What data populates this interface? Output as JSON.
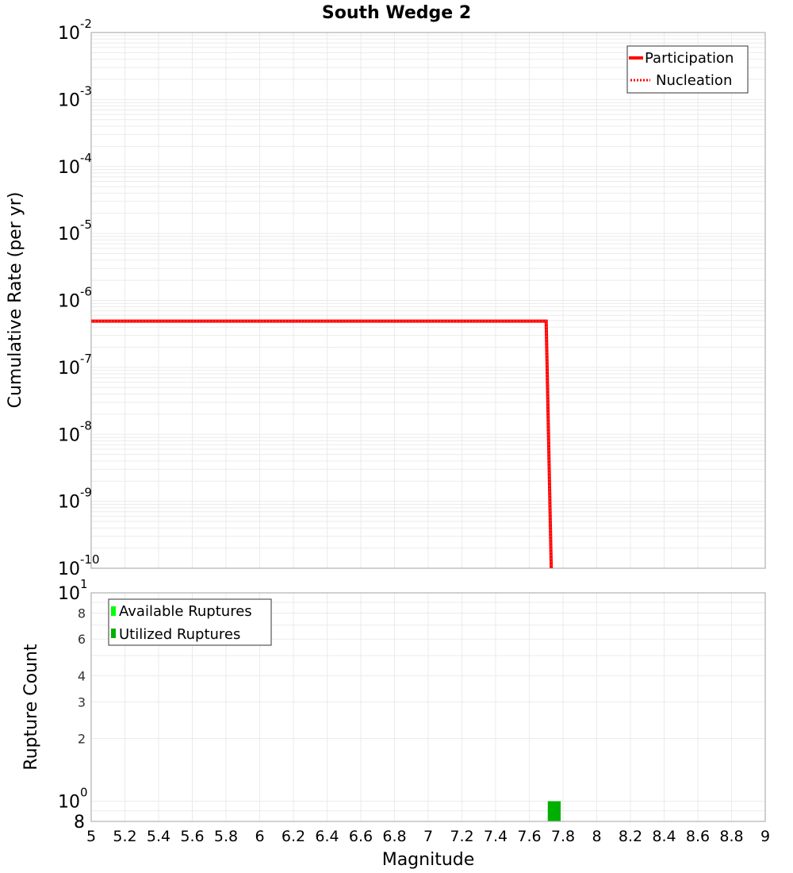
{
  "chart_data": [
    {
      "type": "line",
      "title": "South Wedge 2",
      "xlabel": "Magnitude",
      "ylabel": "Cumulative Rate (per yr)",
      "yscale": "log",
      "xlim": [
        5,
        9
      ],
      "ylim": [
        1e-10,
        0.01
      ],
      "grid": true,
      "legend_position": "top-right",
      "y_ticks": [
        "10^-2",
        "10^-3",
        "10^-4",
        "10^-5",
        "10^-6",
        "10^-7",
        "10^-8",
        "10^-9",
        "10^-10"
      ],
      "series": [
        {
          "name": "Participation",
          "style": "solid",
          "color": "#ff0000",
          "x": [
            5.0,
            7.7,
            7.73
          ],
          "y": [
            4.9e-07,
            4.9e-07,
            1e-10
          ]
        },
        {
          "name": "Nucleation",
          "style": "dotted",
          "color": "#ff0000",
          "x": [
            5.0,
            7.7,
            7.73
          ],
          "y": [
            4.9e-07,
            4.9e-07,
            1e-10
          ]
        }
      ]
    },
    {
      "type": "bar",
      "title": "",
      "xlabel": "Magnitude",
      "ylabel": "Rupture Count",
      "yscale": "log",
      "xlim": [
        5,
        9
      ],
      "ylim": [
        0.8,
        10
      ],
      "grid": true,
      "legend_position": "top-left",
      "y_ticks": [
        "10^1",
        "8",
        "6",
        "4",
        "3",
        "2",
        "10^0",
        "8"
      ],
      "x_ticks": [
        "5",
        "5.2",
        "5.4",
        "5.6",
        "5.8",
        "6",
        "6.2",
        "6.4",
        "6.6",
        "6.8",
        "7",
        "7.2",
        "7.4",
        "7.6",
        "7.8",
        "8",
        "8.2",
        "8.4",
        "8.6",
        "8.8",
        "9"
      ],
      "series": [
        {
          "name": "Available Ruptures",
          "color": "#00ff00",
          "bins": [
            [
              7.7,
              7.8
            ]
          ],
          "values": [
            1
          ]
        },
        {
          "name": "Utilized Ruptures",
          "color": "#00b000",
          "bins": [
            [
              7.7,
              7.8
            ]
          ],
          "values": [
            1
          ]
        }
      ]
    }
  ],
  "labels": {
    "title": "South Wedge 2",
    "top_ylabel": "Cumulative Rate (per yr)",
    "bottom_ylabel": "Rupture Count",
    "xlabel": "Magnitude",
    "legend_top": [
      "Participation",
      "Nucleation"
    ],
    "legend_bottom": [
      "Available Ruptures",
      "Utilized Ruptures"
    ],
    "x_ticks": [
      "5",
      "5.2",
      "5.4",
      "5.6",
      "5.8",
      "6",
      "6.2",
      "6.4",
      "6.6",
      "6.8",
      "7",
      "7.2",
      "7.4",
      "7.6",
      "7.8",
      "8",
      "8.2",
      "8.4",
      "8.6",
      "8.8",
      "9"
    ],
    "top_y_exps": [
      "-2",
      "-3",
      "-4",
      "-5",
      "-6",
      "-7",
      "-8",
      "-9",
      "-10"
    ],
    "bottom_y_minor": [
      "8",
      "6",
      "4",
      "3",
      "2"
    ],
    "bottom_y_base": "10",
    "bottom_y_top_exp": "1",
    "bottom_y_bottom_exp": "0",
    "bottom_y_last": "8"
  },
  "colors": {
    "line": "#ff0000",
    "available": "#00ff00",
    "utilized": "#00b000",
    "grid": "#ebebeb",
    "frame": "#b0b0b0"
  }
}
